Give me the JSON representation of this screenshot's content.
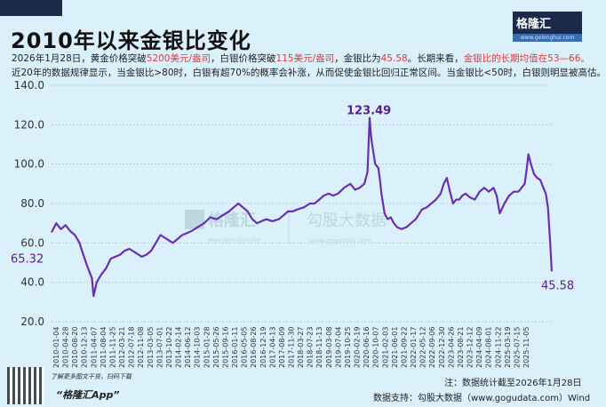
{
  "header": {
    "title": "2010年以来金银比变化",
    "logo": "格隆汇",
    "logo_url": "www.gelonghui.com"
  },
  "desc": {
    "line1": [
      "2026年1月28日，黄金价格突破",
      "5200美元/盎司",
      "，白银价格突破",
      "115美元/盎司",
      "，金银比为",
      "45.58",
      "。长期来看，",
      "金银比的长期均值在53—66。"
    ],
    "line2": "近20年的数据规律显示，当金银比>80时，白银有超70%的概率会补涨，从而促使金银比回归正常区间。当金银比<50时，白银则明显被高估。"
  },
  "colors": {
    "line": "#6a2fb0",
    "accent": "#e23a3a",
    "label": "#5a2090"
  },
  "watermark": {
    "left": "格隆汇",
    "left_url": "www.gelonghui.com",
    "right": "勾股大数据",
    "right_url": "www.gogudata.com"
  },
  "chart_data": {
    "type": "line",
    "title": "2010年以来金银比变化",
    "ylim": [
      20,
      140
    ],
    "yticks": [
      "20.0",
      "40.0",
      "60.0",
      "80.0",
      "100.0",
      "120.0",
      "140.0"
    ],
    "xlim": [
      2010.0,
      2026.1
    ],
    "xticks": [
      "2010-01-04",
      "2010-04-28",
      "2010-08-20",
      "2010-12-13",
      "2011-04-07",
      "2011-08-04",
      "2011-11-25",
      "2012-03-21",
      "2012-07-18",
      "2012-11-08",
      "2013-03-05",
      "2013-07-01",
      "2013-10-22",
      "2014-02-14",
      "2014-06-12",
      "2014-10-03",
      "2015-01-28",
      "2015-05-26",
      "2015-09-16",
      "2016-01-11",
      "2016-05-05",
      "2016-08-26",
      "2016-12-19",
      "2017-04-13",
      "2017-08-09",
      "2017-11-30",
      "2018-03-27",
      "2018-07-23",
      "2018-11-13",
      "2019-03-08",
      "2019-07-04",
      "2019-10-25",
      "2020-02-19",
      "2020-06-16",
      "2020-10-07",
      "2021-02-03",
      "2021-06-01",
      "2021-09-22",
      "2022-01-17",
      "2022-05-12",
      "2022-09-06",
      "2022-12-30",
      "2023-04-26",
      "2023-08-21",
      "2023-12-12",
      "2024-04-09",
      "2024-08-01",
      "2024-11-22",
      "2025-03-19",
      "2025-07-15",
      "2025-11-05"
    ],
    "x": [
      2010.0,
      2010.15,
      2010.3,
      2010.45,
      2010.6,
      2010.75,
      2010.9,
      2011.0,
      2011.15,
      2011.3,
      2011.35,
      2011.45,
      2011.6,
      2011.75,
      2011.9,
      2012.05,
      2012.2,
      2012.35,
      2012.5,
      2012.7,
      2012.9,
      2013.05,
      2013.2,
      2013.35,
      2013.5,
      2013.7,
      2013.9,
      2014.05,
      2014.2,
      2014.35,
      2014.5,
      2014.7,
      2014.9,
      2015.1,
      2015.3,
      2015.5,
      2015.7,
      2015.85,
      2016.0,
      2016.15,
      2016.3,
      2016.45,
      2016.6,
      2016.75,
      2016.9,
      2017.1,
      2017.3,
      2017.45,
      2017.6,
      2017.75,
      2017.9,
      2018.1,
      2018.3,
      2018.45,
      2018.6,
      2018.75,
      2018.9,
      2019.05,
      2019.2,
      2019.4,
      2019.6,
      2019.75,
      2019.9,
      2020.05,
      2020.15,
      2020.22,
      2020.26,
      2020.3,
      2020.4,
      2020.5,
      2020.55,
      2020.6,
      2020.7,
      2020.8,
      2020.9,
      2021.0,
      2021.1,
      2021.25,
      2021.4,
      2021.55,
      2021.7,
      2021.9,
      2022.05,
      2022.2,
      2022.35,
      2022.5,
      2022.6,
      2022.7,
      2022.8,
      2022.9,
      2023.0,
      2023.1,
      2023.2,
      2023.3,
      2023.45,
      2023.6,
      2023.75,
      2023.9,
      2024.05,
      2024.2,
      2024.3,
      2024.4,
      2024.55,
      2024.7,
      2024.85,
      2025.0,
      2025.1,
      2025.2,
      2025.27,
      2025.32,
      2025.4,
      2025.5,
      2025.6,
      2025.7,
      2025.8,
      2025.88,
      2025.95,
      2026.02,
      2026.07
    ],
    "values": [
      65.32,
      70,
      67,
      69,
      66,
      64,
      60,
      55,
      48,
      42,
      33,
      40,
      44,
      47,
      52,
      53,
      54,
      56,
      57,
      55,
      53,
      54,
      56,
      60,
      64,
      62,
      60,
      62,
      64,
      65,
      66,
      68,
      70,
      73,
      72,
      74,
      76,
      78,
      80,
      78,
      76,
      72,
      70,
      71,
      72,
      71,
      72,
      74,
      76,
      76,
      77,
      78,
      80,
      80,
      82,
      84,
      85,
      84,
      85,
      88,
      90,
      87,
      88,
      90,
      96,
      123.49,
      115,
      110,
      100,
      98,
      92,
      85,
      75,
      72,
      73,
      70,
      68,
      67,
      68,
      70,
      72,
      77,
      78,
      80,
      82,
      85,
      90,
      93,
      86,
      80,
      82,
      82,
      84,
      85,
      83,
      82,
      86,
      88,
      86,
      88,
      84,
      75,
      80,
      84,
      86,
      86,
      88,
      90,
      98,
      105,
      100,
      95,
      93,
      92,
      88,
      85,
      78,
      60,
      45.58
    ],
    "annotations": {
      "start": "65.32",
      "peak": "123.49",
      "end": "45.58"
    }
  },
  "footer": {
    "note": "注：数据统计截至2026年1月28日",
    "source": "数据支持：勾股大数据（www.gogudata.com）Wind",
    "promo": "了解更多图文干货，扫码下载",
    "app": "“格隆汇App”"
  }
}
